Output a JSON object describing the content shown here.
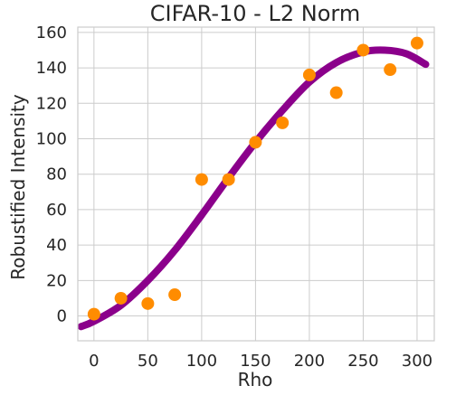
{
  "chart_data": {
    "type": "scatter",
    "title": "CIFAR-10 - L2 Norm",
    "xlabel": "Rho",
    "ylabel": "Robustified Intensity",
    "xlim": [
      -15,
      316
    ],
    "ylim": [
      -14,
      163
    ],
    "xticks": [
      0,
      50,
      100,
      150,
      200,
      250,
      300
    ],
    "yticks": [
      0,
      20,
      40,
      60,
      80,
      100,
      120,
      140,
      160
    ],
    "grid": true,
    "series": [
      {
        "kind": "scatter",
        "color": "#ff8c00",
        "x": [
          0,
          25,
          50,
          75,
          100,
          125,
          150,
          175,
          200,
          225,
          250,
          275,
          300
        ],
        "y": [
          1,
          10,
          7,
          12,
          77,
          77,
          98,
          109,
          136,
          126,
          150,
          139,
          154
        ]
      },
      {
        "kind": "line",
        "color": "#8b008b",
        "x": [
          -12,
          0,
          25,
          50,
          75,
          100,
          125,
          150,
          175,
          200,
          225,
          250,
          270,
          290,
          308
        ],
        "y": [
          -6,
          -3,
          6,
          20,
          37,
          57,
          78,
          98,
          116,
          132,
          143,
          149,
          150,
          148,
          142
        ]
      }
    ]
  }
}
